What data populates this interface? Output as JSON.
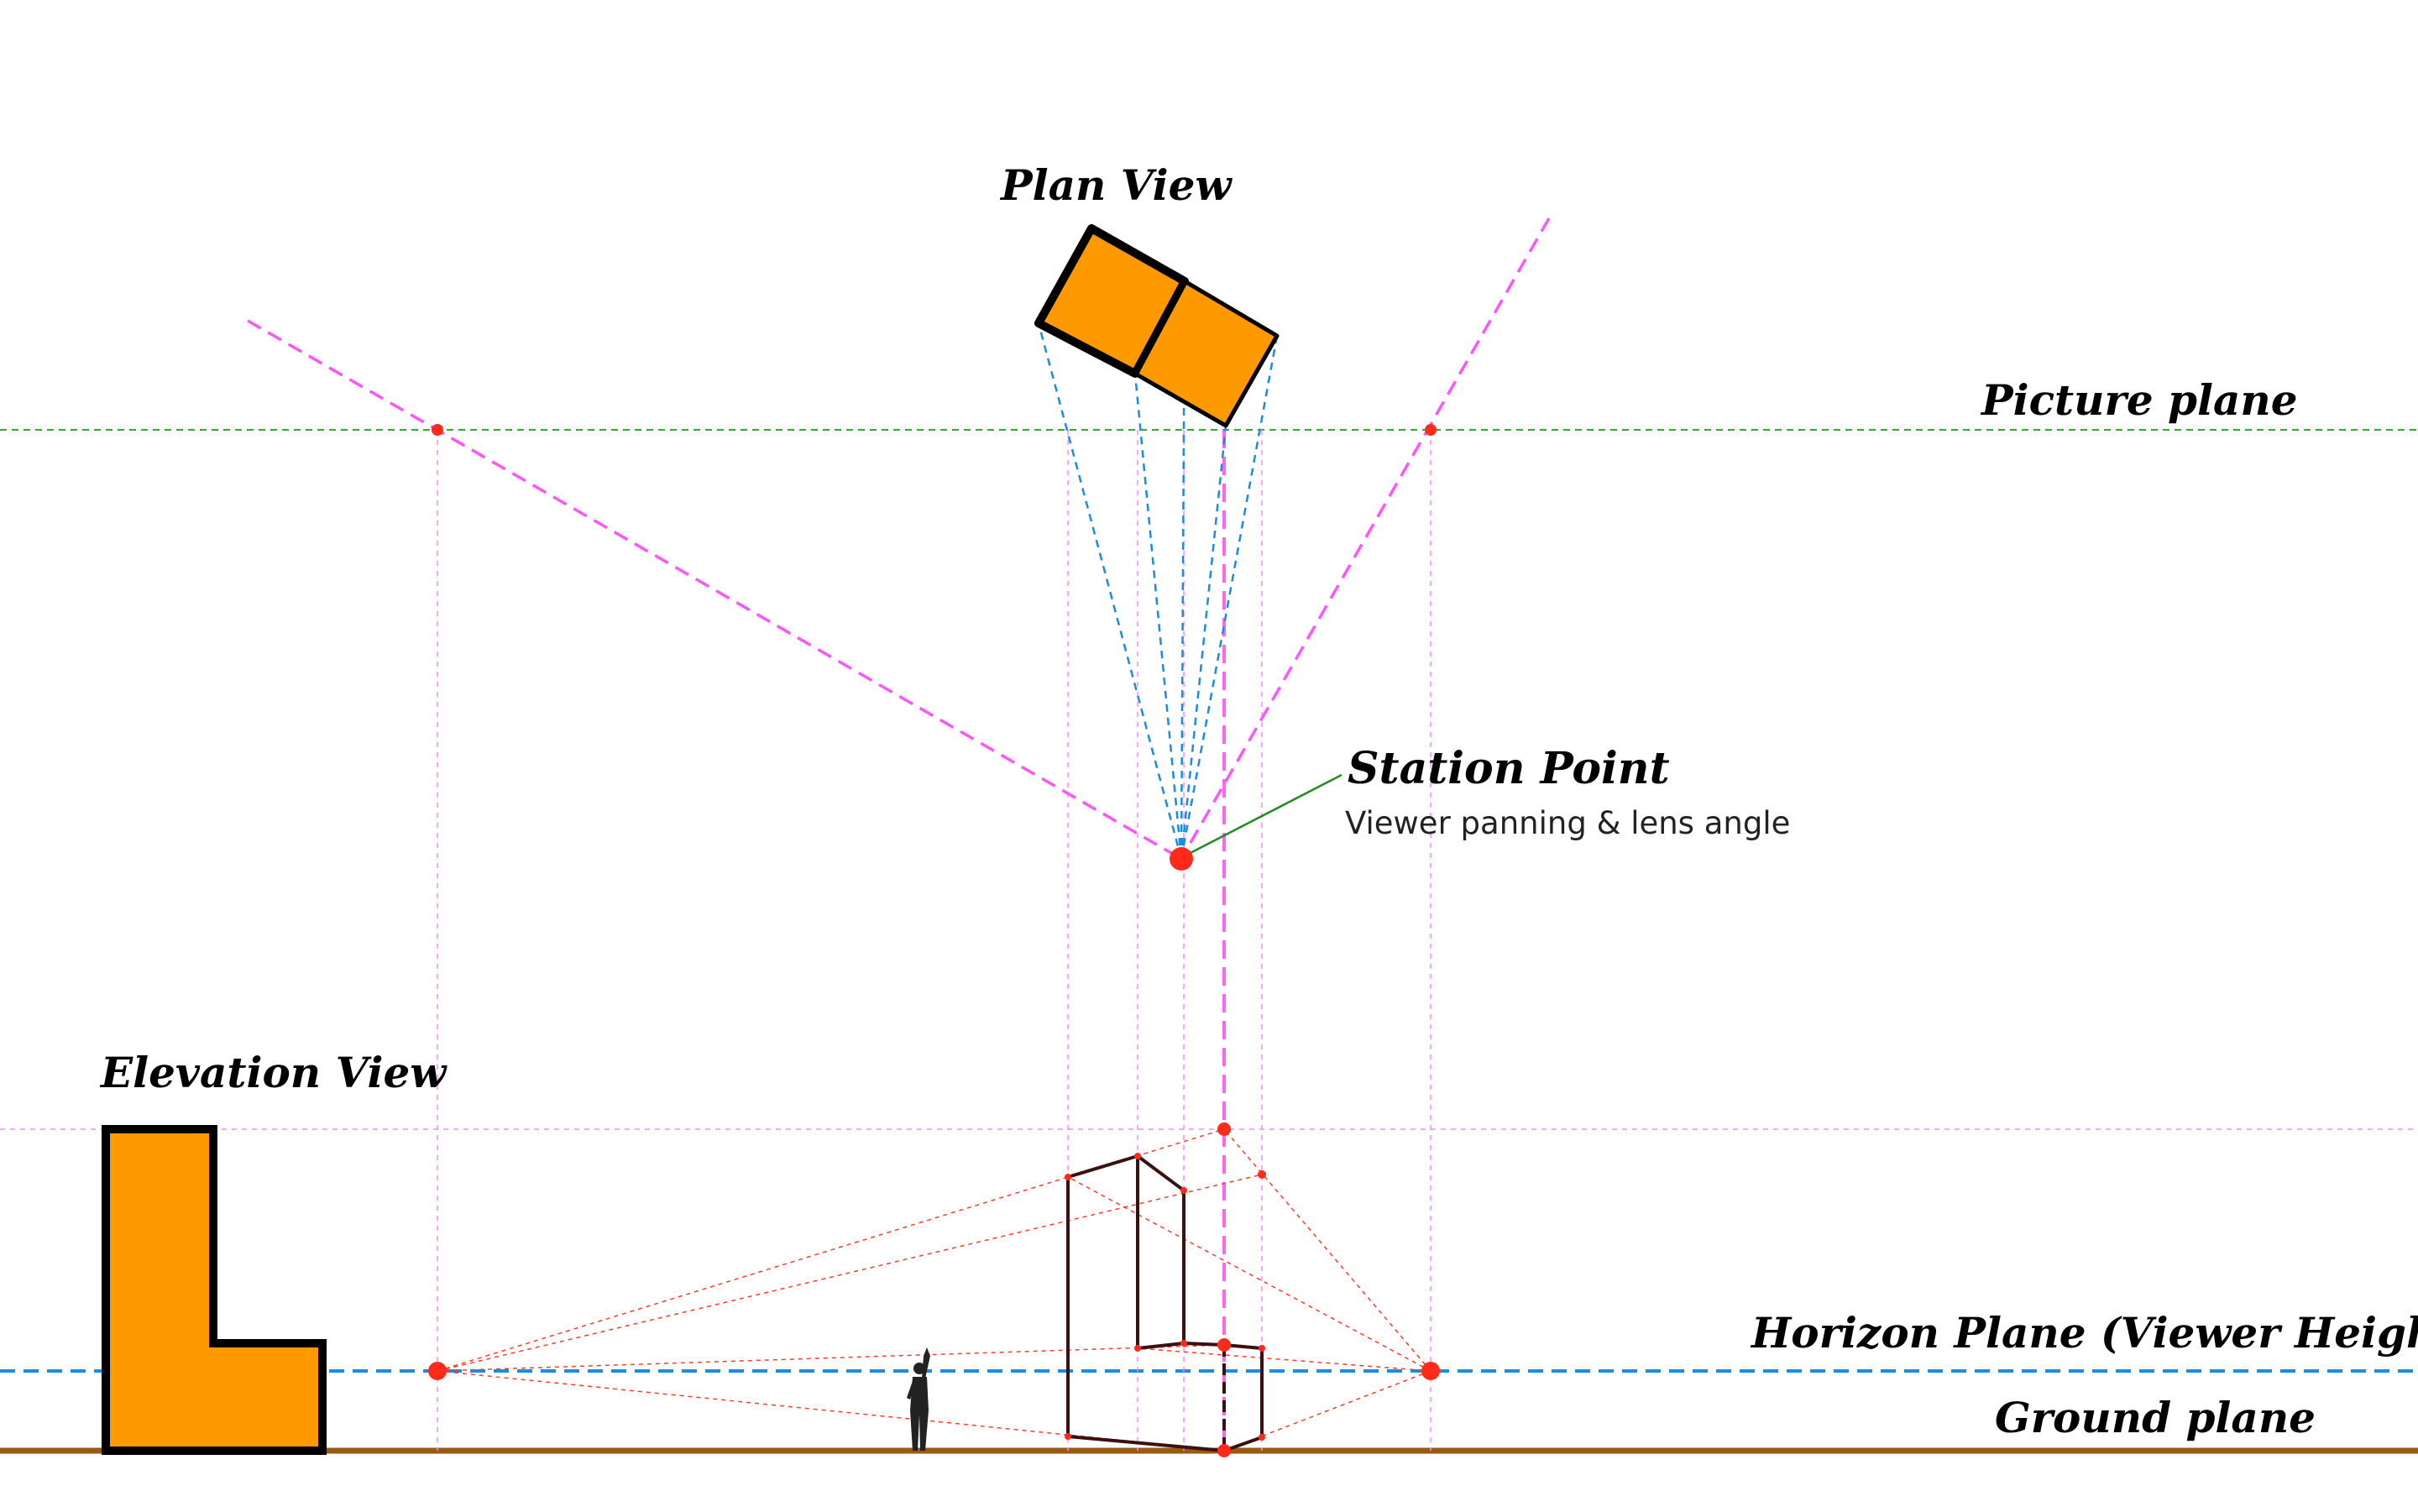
{
  "labels": {
    "plan_view": "Plan View",
    "picture_plane": "Picture plane",
    "station_point": "Station Point",
    "station_point_note": "Viewer panning & lens angle",
    "elevation_view": "Elevation View",
    "horizon_plane": "Horizon Plane (Viewer Height)",
    "ground_plane": "Ground plane"
  },
  "colors": {
    "object_fill": "#ff9900",
    "object_stroke": "#000000",
    "picture_plane_line": "#33aa33",
    "horizon_line": "#1a8ce6",
    "ground_line": "#9a5a10",
    "construction_magenta": "#ff55ff",
    "sight_lines_blue": "#1a8ce6",
    "perspective_lines_red": "#ff3b2a",
    "point_red": "#ff2a1a",
    "station_leader": "#228b22"
  }
}
